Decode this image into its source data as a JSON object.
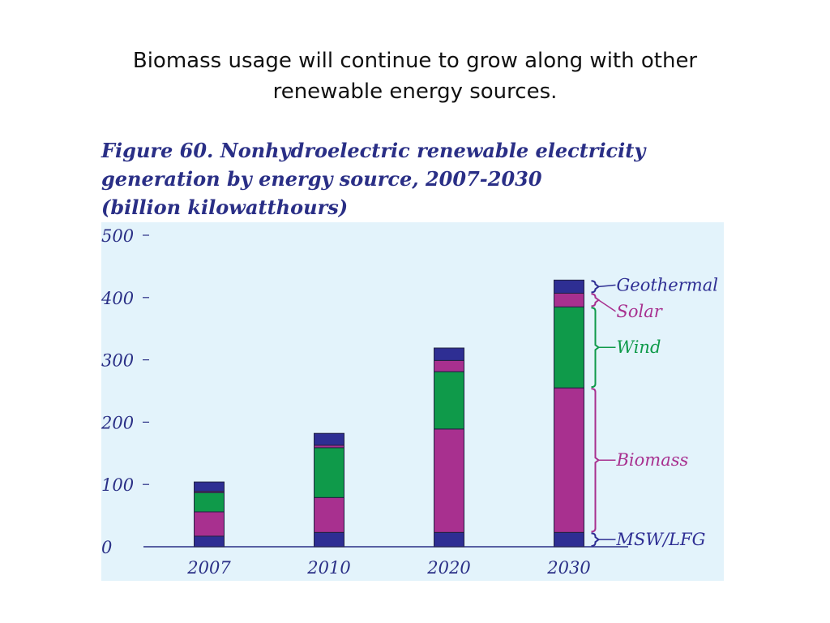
{
  "slide": {
    "title_line1": "Biomass usage will continue to grow along with other",
    "title_line2": "renewable energy sources."
  },
  "figure": {
    "title_line1": "Figure 60. Nonhydroelectric renewable electricity",
    "title_line2": "generation by energy source, 2007-2030",
    "title_line3": "(billion kilowatthours)"
  },
  "colors": {
    "panel_bg": "#e3f3fb",
    "MSW/LFG": "#2e2e93",
    "Biomass": "#a8308f",
    "Wind": "#0f9a4a",
    "Solar": "#a8308f",
    "Geothermal": "#2e2e93",
    "label_geo_msw": "#2e2e93",
    "label_solar_biomass": "#a8308f",
    "label_wind": "#0f9a4a",
    "axis": "#2a2f86"
  },
  "chart_data": {
    "type": "bar",
    "stacked": true,
    "categories": [
      "2007",
      "2010",
      "2020",
      "2030"
    ],
    "series": [
      {
        "name": "MSW/LFG",
        "values": [
          17,
          23,
          23,
          23
        ]
      },
      {
        "name": "Biomass",
        "values": [
          39,
          56,
          166,
          232
        ]
      },
      {
        "name": "Wind",
        "values": [
          31,
          80,
          92,
          130
        ]
      },
      {
        "name": "Solar",
        "values": [
          2,
          4,
          18,
          22
        ]
      },
      {
        "name": "Geothermal",
        "values": [
          15,
          19,
          20,
          21
        ]
      }
    ],
    "yticks": [
      0,
      100,
      200,
      300,
      400,
      500
    ],
    "ylim": [
      0,
      500
    ],
    "grid": false,
    "legend": "right, bracketed labels beside the 2030 bar"
  }
}
